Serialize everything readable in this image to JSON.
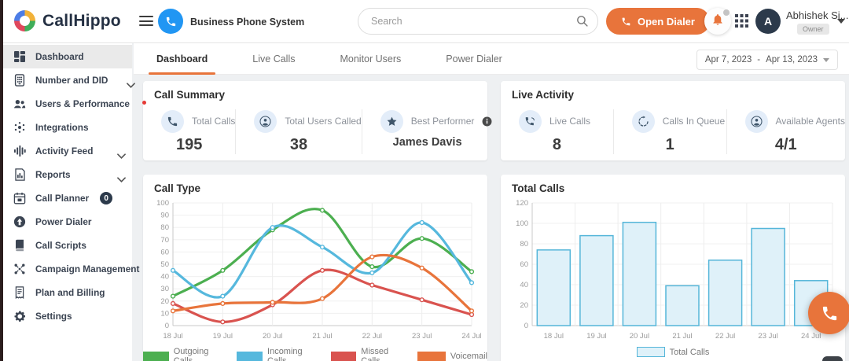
{
  "colors": {
    "accent_orange": "#e8743b",
    "brand_navy": "#243043",
    "series_green": "#4caf50",
    "series_blue": "#56b8dd",
    "series_red": "#d9534f",
    "series_orange": "#e8743b",
    "bar_fill": "#dff1f9",
    "bar_stroke": "#55b6d9"
  },
  "header": {
    "brand": "CallHippo",
    "product": "Business Phone System",
    "search_placeholder": "Search",
    "open_dialer": "Open Dialer",
    "user": {
      "initial": "A",
      "name": "Abhishek Si...",
      "role": "Owner"
    }
  },
  "sidebar": {
    "items": [
      {
        "label": "Dashboard",
        "icon": "dashboard-icon",
        "active": true
      },
      {
        "label": "Number and DID",
        "icon": "dialpad-icon",
        "chevron": true
      },
      {
        "label": "Users & Performance",
        "icon": "users-icon",
        "chevron": true
      },
      {
        "label": "Integrations",
        "icon": "integrations-icon"
      },
      {
        "label": "Activity Feed",
        "icon": "activity-icon",
        "chevron": true
      },
      {
        "label": "Reports",
        "icon": "reports-icon",
        "chevron": true
      },
      {
        "label": "Call Planner",
        "icon": "calendar-icon",
        "badge": "0"
      },
      {
        "label": "Power Dialer",
        "icon": "power-dialer-icon"
      },
      {
        "label": "Call Scripts",
        "icon": "scripts-icon"
      },
      {
        "label": "Campaign Management",
        "icon": "campaign-icon"
      },
      {
        "label": "Plan and Billing",
        "icon": "billing-icon"
      },
      {
        "label": "Settings",
        "icon": "gear-icon"
      }
    ]
  },
  "tabs": [
    {
      "label": "Dashboard",
      "active": true
    },
    {
      "label": "Live Calls",
      "active": false
    },
    {
      "label": "Monitor Users",
      "active": false
    },
    {
      "label": "Power Dialer",
      "active": false
    }
  ],
  "date_range": {
    "start": "Apr 7, 2023",
    "separator": "-",
    "end": "Apr 13, 2023"
  },
  "call_summary": {
    "title": "Call Summary",
    "stats": [
      {
        "icon": "phone-icon",
        "label": "Total Calls",
        "value": "195"
      },
      {
        "icon": "user-icon",
        "label": "Total Users Called",
        "value": "38"
      },
      {
        "icon": "star-icon",
        "label": "Best Performer",
        "value": "James Davis",
        "info": true
      }
    ]
  },
  "live_activity": {
    "title": "Live Activity",
    "stats": [
      {
        "icon": "live-call-icon",
        "label": "Live Calls",
        "value": "8"
      },
      {
        "icon": "queue-icon",
        "label": "Calls In Queue",
        "value": "1"
      },
      {
        "icon": "agent-icon",
        "label": "Available Agents",
        "value": "4/1"
      }
    ]
  },
  "chart_data": [
    {
      "type": "line",
      "title": "Call Type",
      "x": [
        "18 Jul",
        "19 Jul",
        "20 Jul",
        "21 Jul",
        "22 Jul",
        "23 Jul",
        "24 Jul"
      ],
      "ylim": [
        0,
        100
      ],
      "ytick": 10,
      "grid": true,
      "legend_position": "bottom",
      "series": [
        {
          "name": "Outgoing Calls",
          "color": "#4caf50",
          "values": [
            24,
            45,
            78,
            94,
            48,
            71,
            44
          ]
        },
        {
          "name": "Incoming Calls",
          "color": "#56b8dd",
          "values": [
            45,
            24,
            80,
            64,
            43,
            84,
            35
          ]
        },
        {
          "name": "Missed Calls",
          "color": "#d9534f",
          "values": [
            18,
            3,
            17,
            45,
            33,
            21,
            9
          ]
        },
        {
          "name": "Voicemail",
          "color": "#e8743b",
          "values": [
            12,
            18,
            19,
            22,
            56,
            47,
            12
          ]
        }
      ]
    },
    {
      "type": "bar",
      "title": "Total Calls",
      "categories": [
        "18 Jul",
        "19 Jul",
        "20 Jul",
        "21 Jul",
        "22 Jul",
        "23 Jul",
        "24 Jul"
      ],
      "values": [
        74,
        88,
        101,
        39,
        64,
        95,
        44
      ],
      "series_name": "Total Calls",
      "ylim": [
        0,
        120
      ],
      "ytick": 20,
      "grid": true,
      "legend_position": "bottom",
      "bar_fill": "#dff1f9",
      "bar_stroke": "#55b6d9"
    }
  ]
}
